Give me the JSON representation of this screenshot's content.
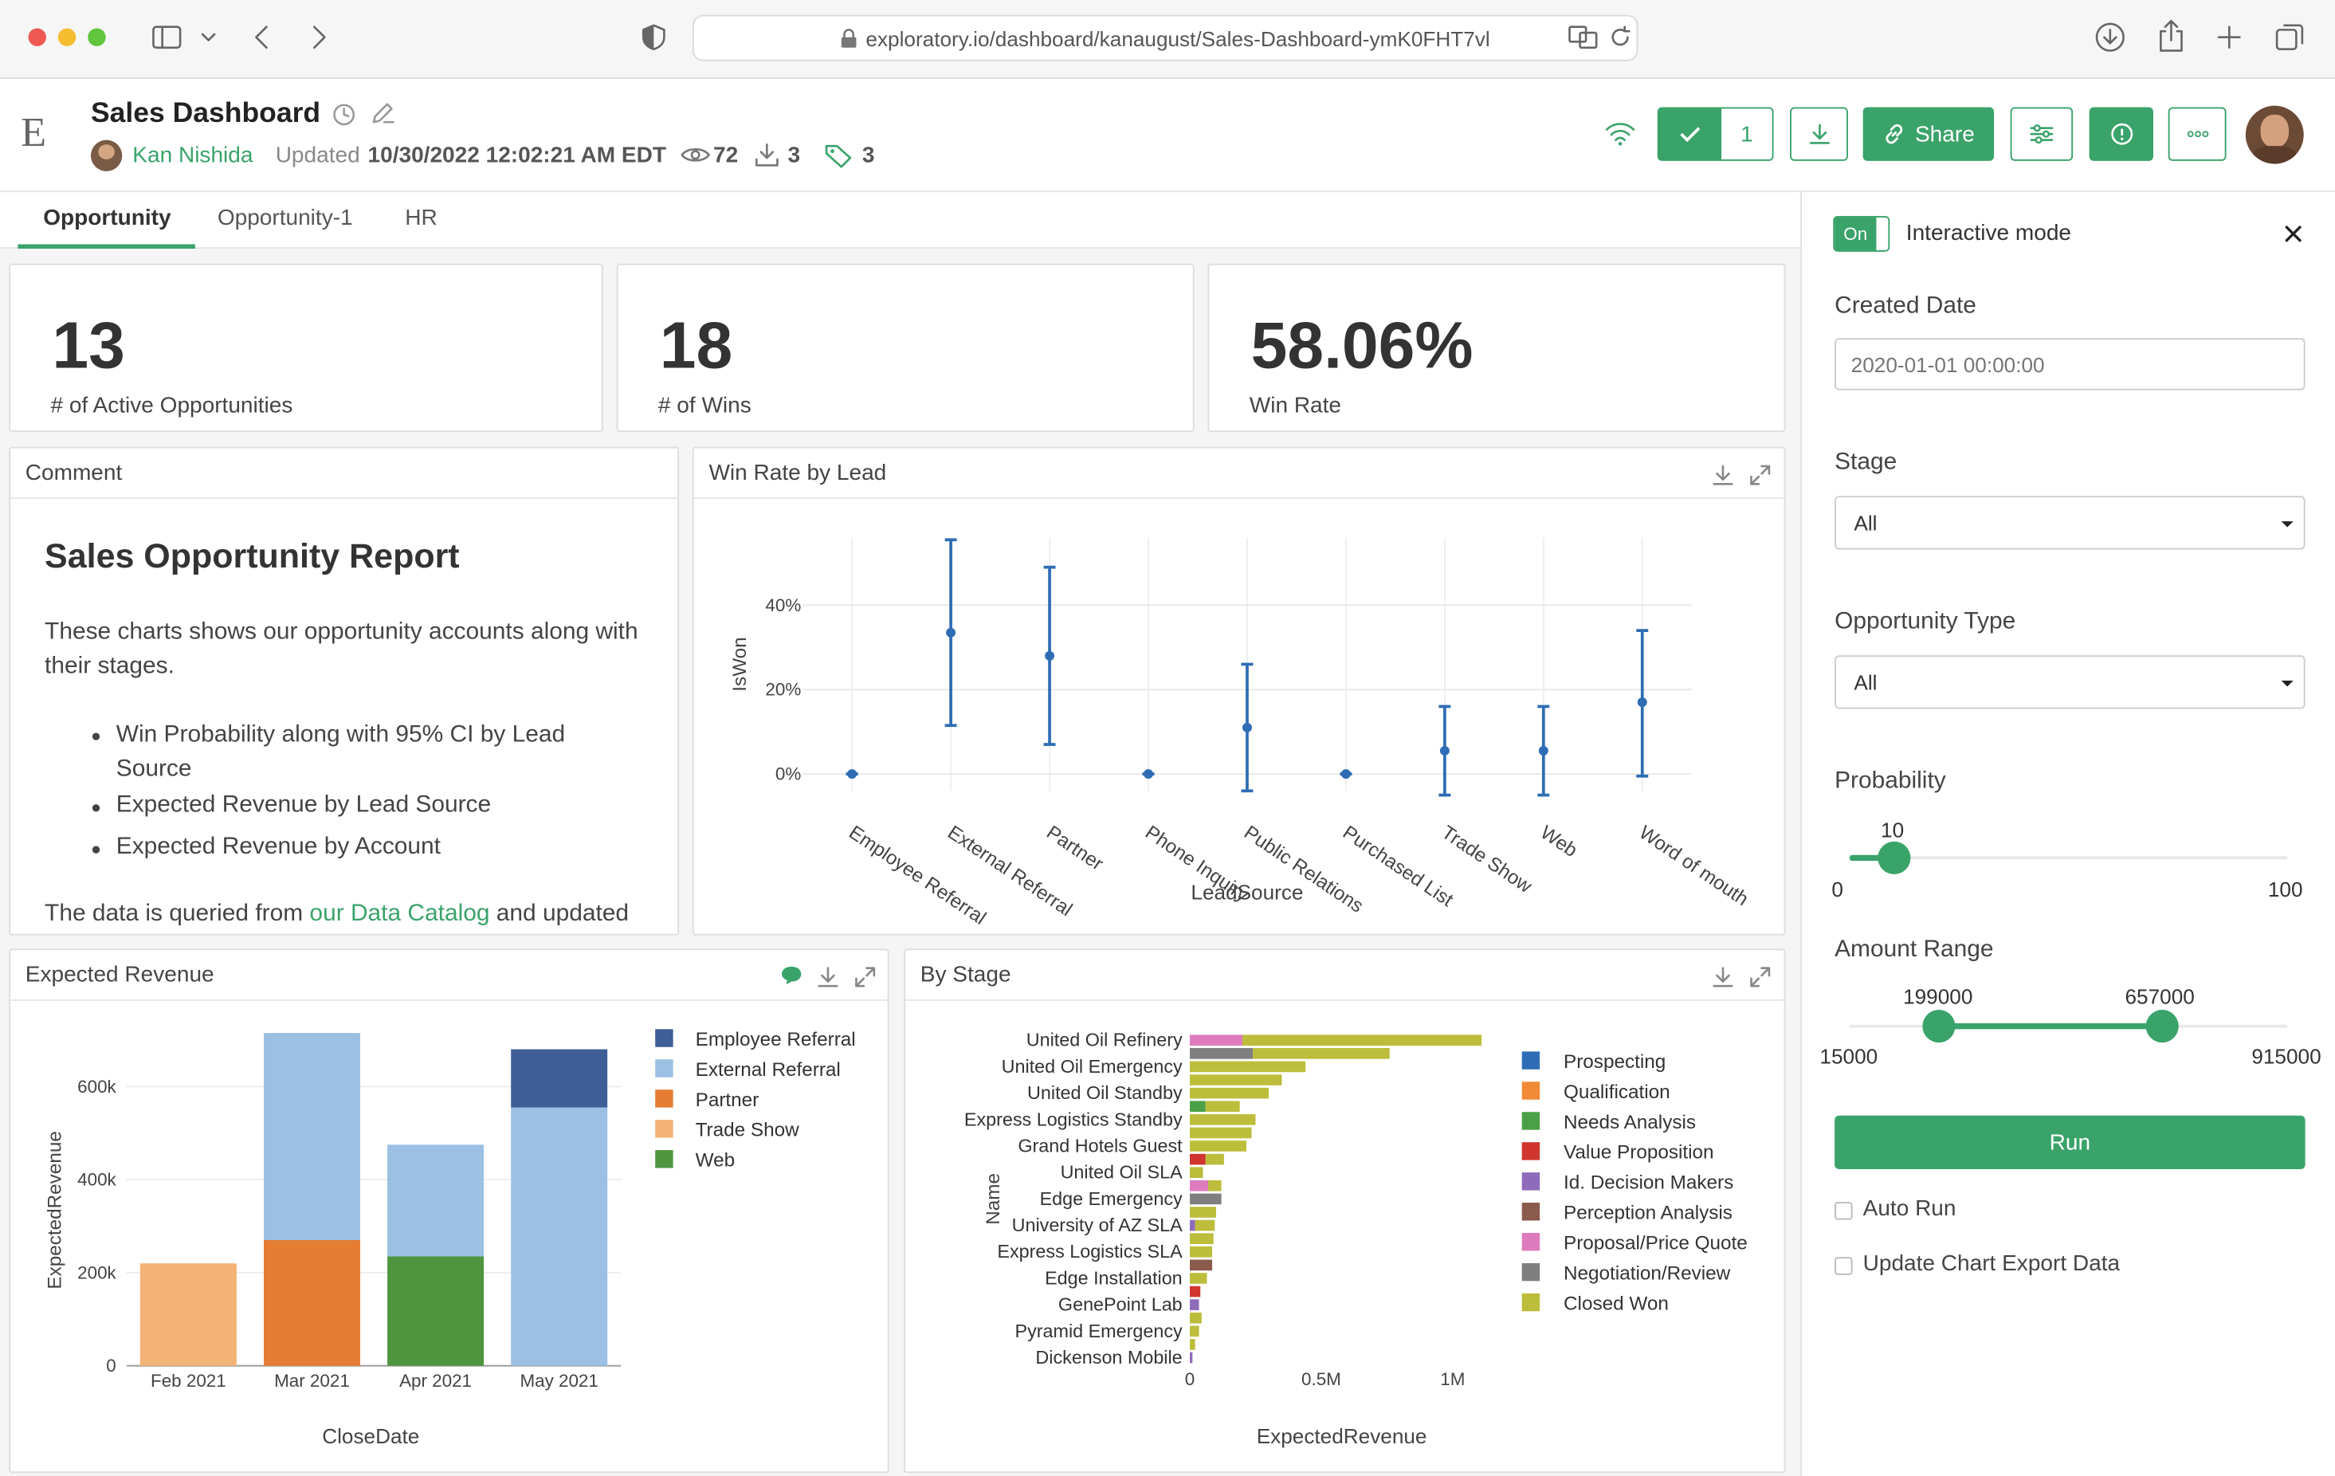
{
  "browser": {
    "url": "exploratory.io/dashboard/kanaugust/Sales-Dashboard-ymK0FHT7vl"
  },
  "header": {
    "logo": "E",
    "title": "Sales Dashboard",
    "author": "Kan Nishida",
    "updated_label": "Updated",
    "updated_value": "10/30/2022 12:02:21 AM EDT",
    "views": "72",
    "downloads": "3",
    "tags": "3",
    "approve_count": "1",
    "share_label": "Share"
  },
  "tabs": [
    {
      "label": "Opportunity",
      "active": true
    },
    {
      "label": "Opportunity-1",
      "active": false
    },
    {
      "label": "HR",
      "active": false
    }
  ],
  "kpis": [
    {
      "value": "13",
      "label": "# of Active Opportunities"
    },
    {
      "value": "18",
      "label": "# of Wins"
    },
    {
      "value": "58.06%",
      "label": "Win Rate"
    }
  ],
  "comment": {
    "title": "Comment",
    "heading": "Sales Opportunity Report",
    "intro": "These charts shows our opportunity accounts along with their stages.",
    "bullets": [
      "Win Probability along with 95% CI by Lead Source",
      "Expected Revenue by Lead Source",
      "Expected Revenue by Account"
    ],
    "footer_pre": "The data is queried from ",
    "footer_link": "our Data Catalog",
    "footer_post": " and updated"
  },
  "panel": {
    "toggle": "On",
    "mode_label": "Interactive mode",
    "created_date_label": "Created Date",
    "created_date_placeholder": "2020-01-01 00:00:00",
    "stage_label": "Stage",
    "stage_value": "All",
    "opp_type_label": "Opportunity Type",
    "opp_type_value": "All",
    "probability_label": "Probability",
    "probability_value": "10",
    "probability_min": "0",
    "probability_max": "100",
    "amount_label": "Amount Range",
    "amount_low": "199000",
    "amount_high": "657000",
    "amount_min": "15000",
    "amount_max": "915000",
    "run_label": "Run",
    "auto_run_label": "Auto Run",
    "update_export_label": "Update Chart Export Data",
    "colors": {
      "accent": "#3aa36a"
    }
  },
  "chart_data": [
    {
      "type": "scatter",
      "title": "Win Rate by Lead",
      "xlabel": "LeadSource",
      "ylabel": "IsWon",
      "y_ticks": [
        "0%",
        "20%",
        "40%"
      ],
      "ylim": [
        -0.04,
        0.56
      ],
      "categories": [
        "Employee Referral",
        "External Referral",
        "Partner",
        "Phone Inquiry",
        "Public Relations",
        "Purchased List",
        "Trade Show",
        "Web",
        "Word of mouth"
      ],
      "values": [
        0,
        0.335,
        0.28,
        0,
        0.11,
        0,
        0.055,
        0.055,
        0.17
      ],
      "ci_low": [
        0,
        0.115,
        0.07,
        0,
        -0.04,
        0,
        -0.05,
        -0.05,
        -0.005
      ],
      "ci_high": [
        0,
        0.555,
        0.49,
        0,
        0.26,
        0,
        0.16,
        0.16,
        0.34
      ],
      "color": "#2e6db4"
    },
    {
      "type": "bar",
      "stacked": true,
      "title": "Expected Revenue",
      "xlabel": "CloseDate",
      "ylabel": "ExpectedRevenue",
      "y_ticks": [
        "0",
        "200k",
        "400k",
        "600k"
      ],
      "ylim": [
        0,
        720000
      ],
      "categories": [
        "Feb 2021",
        "Mar 2021",
        "Apr 2021",
        "May 2021"
      ],
      "series": [
        {
          "name": "Employee Referral",
          "color": "#3d5e97",
          "values": [
            0,
            0,
            0,
            125000
          ]
        },
        {
          "name": "External Referral",
          "color": "#9bc0e3",
          "values": [
            0,
            445000,
            240000,
            555000
          ]
        },
        {
          "name": "Partner",
          "color": "#e57d32",
          "values": [
            0,
            270000,
            0,
            0
          ]
        },
        {
          "name": "Trade Show",
          "color": "#f3b276",
          "values": [
            220000,
            0,
            0,
            0
          ]
        },
        {
          "name": "Web",
          "color": "#4f9540",
          "values": [
            0,
            0,
            235000,
            0
          ]
        }
      ],
      "legend_position": "right"
    },
    {
      "type": "bar",
      "orientation": "horizontal",
      "stacked": true,
      "title": "By Stage",
      "xlabel": "ExpectedRevenue",
      "ylabel": "Name",
      "x_ticks": [
        "0",
        "0.5M",
        "1M"
      ],
      "xlim": [
        0,
        1150000
      ],
      "categories": [
        "United Oil Refinery",
        "",
        "United Oil Emergency",
        "",
        "United Oil Standby",
        "",
        "Express Logistics Standby",
        "",
        "Grand Hotels Guest",
        "",
        "United Oil SLA",
        "",
        "Edge Emergency",
        "",
        "University of AZ SLA",
        "",
        "Express Logistics SLA",
        "",
        "Edge Installation",
        "",
        "GenePoint Lab",
        "",
        "Pyramid Emergency",
        "",
        "Dickenson Mobile"
      ],
      "series": [
        {
          "name": "Prospecting",
          "color": "#2e6db4",
          "values": [
            0,
            0,
            0,
            0,
            0,
            0,
            0,
            0,
            0,
            0,
            0,
            0,
            0,
            0,
            0,
            0,
            0,
            0,
            0,
            0,
            0,
            0,
            0,
            0,
            0
          ]
        },
        {
          "name": "Qualification",
          "color": "#f08a35",
          "values": [
            0,
            0,
            0,
            0,
            0,
            0,
            0,
            0,
            0,
            0,
            0,
            0,
            0,
            0,
            0,
            0,
            0,
            0,
            0,
            0,
            0,
            0,
            0,
            0,
            0
          ]
        },
        {
          "name": "Needs Analysis",
          "color": "#4aa046",
          "values": [
            0,
            0,
            0,
            0,
            0,
            60000,
            0,
            0,
            0,
            0,
            0,
            0,
            0,
            0,
            0,
            0,
            0,
            0,
            0,
            0,
            0,
            0,
            0,
            0,
            0
          ]
        },
        {
          "name": "Value Proposition",
          "color": "#d0352e",
          "values": [
            0,
            0,
            0,
            0,
            0,
            0,
            0,
            0,
            0,
            60000,
            0,
            0,
            0,
            0,
            0,
            0,
            0,
            0,
            0,
            40000,
            0,
            0,
            0,
            0,
            0
          ]
        },
        {
          "name": "Id. Decision Makers",
          "color": "#8f6bbb",
          "values": [
            0,
            0,
            0,
            0,
            0,
            0,
            0,
            0,
            0,
            0,
            0,
            0,
            0,
            0,
            20000,
            0,
            0,
            0,
            0,
            0,
            35000,
            0,
            0,
            0,
            10000
          ]
        },
        {
          "name": "Perception Analysis",
          "color": "#8a5a4c",
          "values": [
            0,
            0,
            0,
            0,
            0,
            0,
            0,
            0,
            0,
            0,
            0,
            0,
            0,
            0,
            0,
            0,
            0,
            85000,
            0,
            0,
            0,
            0,
            0,
            0,
            0
          ]
        },
        {
          "name": "Proposal/Price Quote",
          "color": "#dd7bbd",
          "values": [
            200000,
            0,
            0,
            0,
            0,
            0,
            0,
            0,
            0,
            0,
            0,
            70000,
            0,
            0,
            0,
            0,
            0,
            0,
            0,
            0,
            0,
            0,
            0,
            0,
            0
          ]
        },
        {
          "name": "Negotiation/Review",
          "color": "#7f7f7f",
          "values": [
            0,
            240000,
            0,
            0,
            0,
            0,
            0,
            0,
            0,
            0,
            0,
            0,
            120000,
            0,
            0,
            0,
            0,
            0,
            0,
            0,
            0,
            0,
            0,
            0,
            0
          ]
        },
        {
          "name": "Closed Won",
          "color": "#bcbd3b",
          "values": [
            910000,
            520000,
            440000,
            350000,
            300000,
            130000,
            250000,
            235000,
            215000,
            70000,
            50000,
            50000,
            0,
            100000,
            75000,
            90000,
            85000,
            0,
            65000,
            0,
            0,
            45000,
            35000,
            20000,
            0
          ]
        }
      ],
      "legend_position": "right"
    }
  ]
}
